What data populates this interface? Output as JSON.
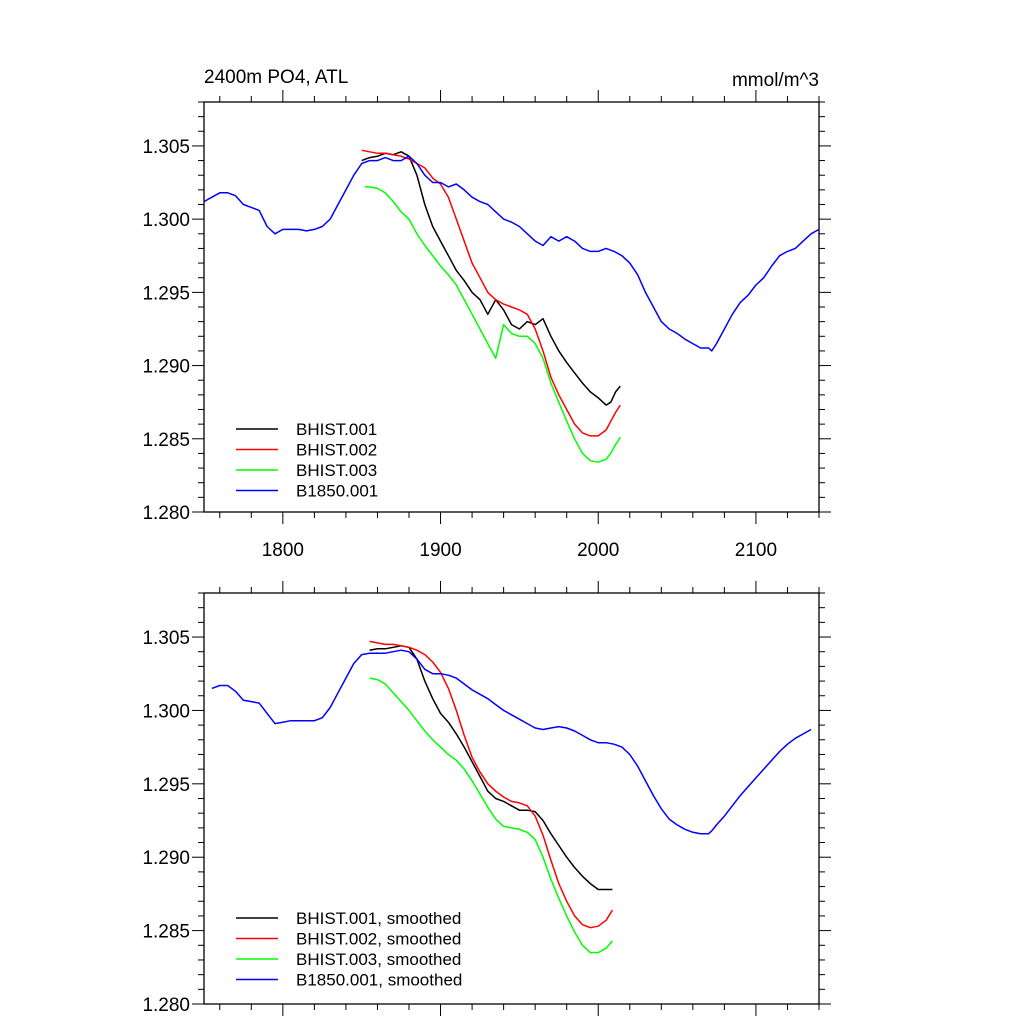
{
  "chart_data": [
    {
      "type": "line",
      "title": "2400m PO4, ATL",
      "units": "mmol/m^3",
      "xlim": [
        1750,
        2140
      ],
      "ylim": [
        1.28,
        1.308
      ],
      "xticks": [
        1800,
        1900,
        2000,
        2100
      ],
      "xtick_labels": [
        "1800",
        "1900",
        "2000",
        "2100"
      ],
      "yticks": [
        1.28,
        1.285,
        1.29,
        1.295,
        1.3,
        1.305
      ],
      "ytick_labels": [
        "1.280",
        "1.285",
        "1.290",
        "1.295",
        "1.300",
        "1.305"
      ],
      "legend_position": "bottom-left",
      "series": [
        {
          "name": "BHIST.001",
          "color": "#000000",
          "x": [
            1850,
            1855,
            1860,
            1865,
            1870,
            1875,
            1880,
            1885,
            1890,
            1895,
            1900,
            1905,
            1910,
            1915,
            1920,
            1925,
            1930,
            1935,
            1940,
            1945,
            1950,
            1955,
            1960,
            1965,
            1970,
            1975,
            1980,
            1985,
            1990,
            1995,
            2000,
            2005,
            2008,
            2011,
            2014
          ],
          "y": [
            1.304,
            1.3042,
            1.3043,
            1.3045,
            1.3044,
            1.3046,
            1.3043,
            1.303,
            1.301,
            1.2995,
            1.2985,
            1.2975,
            1.2965,
            1.2958,
            1.295,
            1.2945,
            1.2935,
            1.2945,
            1.2938,
            1.2928,
            1.2925,
            1.293,
            1.2928,
            1.2932,
            1.292,
            1.291,
            1.2902,
            1.2895,
            1.2888,
            1.2882,
            1.2878,
            1.2873,
            1.2875,
            1.2882,
            1.2886
          ]
        },
        {
          "name": "BHIST.002",
          "color": "#ff0000",
          "x": [
            1850,
            1855,
            1860,
            1865,
            1870,
            1875,
            1880,
            1885,
            1890,
            1895,
            1900,
            1905,
            1910,
            1915,
            1920,
            1925,
            1930,
            1935,
            1940,
            1945,
            1950,
            1955,
            1960,
            1965,
            1970,
            1975,
            1980,
            1985,
            1990,
            1995,
            2000,
            2005,
            2008,
            2011,
            2014
          ],
          "y": [
            1.3047,
            1.3046,
            1.3045,
            1.3045,
            1.3044,
            1.3043,
            1.3041,
            1.3038,
            1.3035,
            1.3028,
            1.3024,
            1.3015,
            1.3,
            1.2985,
            1.297,
            1.296,
            1.295,
            1.2945,
            1.2942,
            1.294,
            1.2938,
            1.2935,
            1.2925,
            1.291,
            1.2892,
            1.288,
            1.287,
            1.286,
            1.2854,
            1.2852,
            1.2852,
            1.2856,
            1.2862,
            1.2868,
            1.2873
          ]
        },
        {
          "name": "BHIST.003",
          "color": "#00ff00",
          "x": [
            1852,
            1855,
            1860,
            1865,
            1870,
            1875,
            1880,
            1885,
            1890,
            1895,
            1900,
            1905,
            1910,
            1915,
            1920,
            1925,
            1930,
            1935,
            1940,
            1945,
            1950,
            1955,
            1960,
            1965,
            1970,
            1975,
            1980,
            1985,
            1990,
            1995,
            2000,
            2005,
            2008,
            2011,
            2014
          ],
          "y": [
            1.3022,
            1.3022,
            1.3021,
            1.3018,
            1.3012,
            1.3005,
            1.3,
            1.299,
            1.2982,
            1.2975,
            1.2968,
            1.2962,
            1.2955,
            1.2945,
            1.2935,
            1.2925,
            1.2915,
            1.2905,
            1.2928,
            1.2922,
            1.292,
            1.292,
            1.2915,
            1.2905,
            1.2888,
            1.2875,
            1.2862,
            1.285,
            1.284,
            1.2835,
            1.2834,
            1.2836,
            1.284,
            1.2846,
            1.2851
          ]
        },
        {
          "name": "B1850.001",
          "color": "#0000ff",
          "x": [
            1750,
            1755,
            1760,
            1765,
            1770,
            1775,
            1780,
            1785,
            1790,
            1795,
            1800,
            1805,
            1810,
            1815,
            1820,
            1825,
            1830,
            1835,
            1840,
            1845,
            1850,
            1855,
            1860,
            1865,
            1870,
            1875,
            1880,
            1885,
            1890,
            1895,
            1900,
            1905,
            1910,
            1915,
            1920,
            1925,
            1930,
            1935,
            1940,
            1945,
            1950,
            1955,
            1960,
            1965,
            1970,
            1975,
            1980,
            1985,
            1990,
            1995,
            2000,
            2005,
            2010,
            2015,
            2020,
            2025,
            2030,
            2035,
            2040,
            2045,
            2050,
            2055,
            2060,
            2065,
            2070,
            2072,
            2075,
            2080,
            2085,
            2090,
            2095,
            2100,
            2105,
            2110,
            2115,
            2120,
            2125,
            2130,
            2135,
            2140
          ],
          "y": [
            1.3012,
            1.3015,
            1.3018,
            1.3018,
            1.3016,
            1.301,
            1.3008,
            1.3006,
            1.2995,
            1.299,
            1.2993,
            1.2993,
            1.2993,
            1.2992,
            1.2993,
            1.2995,
            1.3,
            1.301,
            1.302,
            1.303,
            1.3038,
            1.304,
            1.304,
            1.3042,
            1.304,
            1.304,
            1.3043,
            1.3038,
            1.303,
            1.3025,
            1.3025,
            1.3022,
            1.3024,
            1.302,
            1.3015,
            1.3012,
            1.301,
            1.3005,
            1.3,
            1.2998,
            1.2995,
            1.299,
            1.2985,
            1.2982,
            1.2988,
            1.2985,
            1.2988,
            1.2985,
            1.298,
            1.2978,
            1.2978,
            1.298,
            1.2978,
            1.2975,
            1.297,
            1.2962,
            1.295,
            1.294,
            1.293,
            1.2925,
            1.2922,
            1.2918,
            1.2915,
            1.2912,
            1.2912,
            1.291,
            1.2915,
            1.2925,
            1.2935,
            1.2943,
            1.2948,
            1.2955,
            1.296,
            1.2968,
            1.2975,
            1.2978,
            1.298,
            1.2985,
            1.299,
            1.2993
          ]
        }
      ]
    },
    {
      "type": "line",
      "xlim": [
        1750,
        2140
      ],
      "ylim": [
        1.28,
        1.308
      ],
      "xticks": [
        1800,
        1900,
        2000,
        2100
      ],
      "yticks": [
        1.28,
        1.285,
        1.29,
        1.295,
        1.3,
        1.305
      ],
      "ytick_labels": [
        "1.280",
        "1.285",
        "1.290",
        "1.295",
        "1.300",
        "1.305"
      ],
      "legend_position": "bottom-left",
      "series": [
        {
          "name": "BHIST.001, smoothed",
          "color": "#000000",
          "x": [
            1855,
            1860,
            1865,
            1870,
            1875,
            1880,
            1885,
            1890,
            1895,
            1900,
            1905,
            1910,
            1915,
            1920,
            1925,
            1930,
            1935,
            1940,
            1945,
            1950,
            1955,
            1960,
            1965,
            1970,
            1975,
            1980,
            1985,
            1990,
            1995,
            2000,
            2005,
            2009
          ],
          "y": [
            1.3041,
            1.3042,
            1.3042,
            1.3043,
            1.3044,
            1.3043,
            1.3035,
            1.302,
            1.3008,
            1.2998,
            1.2992,
            1.2984,
            1.2975,
            1.2965,
            1.2955,
            1.2945,
            1.294,
            1.2938,
            1.2935,
            1.2932,
            1.2932,
            1.2931,
            1.2925,
            1.2916,
            1.2908,
            1.29,
            1.2893,
            1.2887,
            1.2882,
            1.2878,
            1.2878,
            1.2878
          ]
        },
        {
          "name": "BHIST.002, smoothed",
          "color": "#ff0000",
          "x": [
            1855,
            1860,
            1865,
            1870,
            1875,
            1880,
            1885,
            1890,
            1895,
            1900,
            1905,
            1910,
            1915,
            1920,
            1925,
            1930,
            1935,
            1940,
            1945,
            1950,
            1955,
            1960,
            1965,
            1970,
            1975,
            1980,
            1985,
            1990,
            1995,
            2000,
            2005,
            2009
          ],
          "y": [
            1.3047,
            1.3046,
            1.3045,
            1.3045,
            1.3044,
            1.3043,
            1.3041,
            1.3038,
            1.3033,
            1.3026,
            1.3015,
            1.3,
            1.2983,
            1.2968,
            1.2958,
            1.295,
            1.2945,
            1.2941,
            1.2938,
            1.2937,
            1.2935,
            1.2928,
            1.2915,
            1.2898,
            1.2882,
            1.287,
            1.286,
            1.2854,
            1.2852,
            1.2853,
            1.2857,
            1.2864
          ]
        },
        {
          "name": "BHIST.003, smoothed",
          "color": "#00ff00",
          "x": [
            1855,
            1860,
            1865,
            1870,
            1875,
            1880,
            1885,
            1890,
            1895,
            1900,
            1905,
            1910,
            1915,
            1920,
            1925,
            1930,
            1935,
            1940,
            1945,
            1950,
            1955,
            1960,
            1965,
            1970,
            1975,
            1980,
            1985,
            1990,
            1995,
            2000,
            2005,
            2009
          ],
          "y": [
            1.3022,
            1.3021,
            1.3018,
            1.3012,
            1.3006,
            1.3,
            1.2993,
            1.2986,
            1.298,
            1.2975,
            1.297,
            1.2966,
            1.296,
            1.2952,
            1.2943,
            1.2934,
            1.2926,
            1.2921,
            1.292,
            1.2919,
            1.2917,
            1.2912,
            1.29,
            1.2885,
            1.2872,
            1.286,
            1.2849,
            1.284,
            1.2835,
            1.2835,
            1.2838,
            1.2843
          ]
        },
        {
          "name": "B1850.001, smoothed",
          "color": "#0000ff",
          "x": [
            1755,
            1760,
            1765,
            1770,
            1775,
            1780,
            1785,
            1790,
            1795,
            1800,
            1805,
            1810,
            1815,
            1820,
            1825,
            1830,
            1835,
            1840,
            1845,
            1850,
            1855,
            1860,
            1865,
            1870,
            1875,
            1880,
            1885,
            1890,
            1895,
            1900,
            1905,
            1910,
            1915,
            1920,
            1925,
            1930,
            1935,
            1940,
            1945,
            1950,
            1955,
            1960,
            1965,
            1970,
            1975,
            1980,
            1985,
            1990,
            1995,
            2000,
            2005,
            2010,
            2015,
            2020,
            2025,
            2030,
            2035,
            2040,
            2045,
            2050,
            2055,
            2060,
            2065,
            2070,
            2072,
            2075,
            2080,
            2085,
            2090,
            2095,
            2100,
            2105,
            2110,
            2115,
            2120,
            2125,
            2130,
            2135
          ],
          "y": [
            1.3015,
            1.3017,
            1.3017,
            1.3013,
            1.3007,
            1.3006,
            1.3005,
            1.2998,
            1.2991,
            1.2992,
            1.2993,
            1.2993,
            1.2993,
            1.2993,
            1.2995,
            1.3002,
            1.3012,
            1.3022,
            1.3032,
            1.3038,
            1.3039,
            1.3039,
            1.3039,
            1.304,
            1.3041,
            1.304,
            1.3035,
            1.3028,
            1.3025,
            1.3025,
            1.3024,
            1.3022,
            1.3018,
            1.3014,
            1.3011,
            1.3008,
            1.3004,
            1.3,
            1.2997,
            1.2994,
            1.2991,
            1.2988,
            1.2987,
            1.2988,
            1.2989,
            1.2988,
            1.2986,
            1.2983,
            1.298,
            1.2978,
            1.2978,
            1.2977,
            1.2975,
            1.297,
            1.2962,
            1.2952,
            1.2942,
            1.2933,
            1.2926,
            1.2922,
            1.2919,
            1.2917,
            1.2916,
            1.2916,
            1.2918,
            1.2922,
            1.2928,
            1.2935,
            1.2942,
            1.2948,
            1.2954,
            1.296,
            1.2966,
            1.2972,
            1.2977,
            1.2981,
            1.2984,
            1.2987
          ]
        }
      ]
    }
  ]
}
